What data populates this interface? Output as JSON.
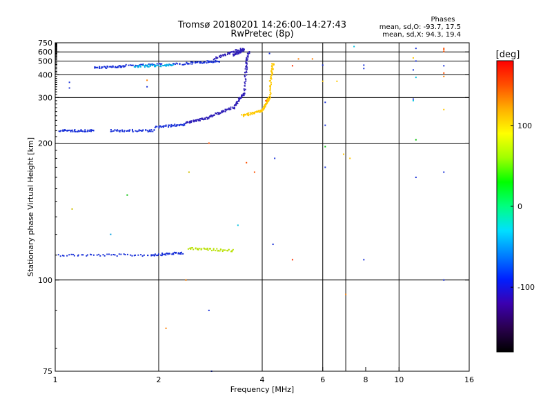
{
  "chart_data": {
    "type": "scatter",
    "title": "Tromsø 20180201 14:26:00–14:27:43",
    "subtitle": "RwPretec (8p)",
    "xlabel": "Frequency [MHz]",
    "ylabel": "Stationary phase Virtual Height [km]",
    "x_scale": "log",
    "y_scale": "reciprocal",
    "xlim": [
      1,
      16
    ],
    "ylim": [
      75,
      750
    ],
    "x_ticks": [
      1,
      2,
      4,
      6,
      8,
      10,
      16
    ],
    "y_ticks": [
      75,
      100,
      200,
      300,
      400,
      500,
      600,
      750
    ],
    "x_gridlines": [
      2,
      4,
      6,
      7,
      10
    ],
    "y_gridlines": [
      100,
      200,
      300,
      400,
      500,
      600
    ],
    "grid": true,
    "stats": {
      "heading": "Phases",
      "line_o": "mean, sd,O: -93.7, 17.5",
      "line_x": "mean, sd,X:  94.3, 19.4"
    },
    "colorbar": {
      "label": "[deg]",
      "range": [
        -180,
        180
      ],
      "ticks": [
        100,
        0,
        -100
      ],
      "colors": [
        "#000000",
        "#2a0050",
        "#3b00b0",
        "#0020ff",
        "#0080ff",
        "#00e0ff",
        "#00ff80",
        "#00ff00",
        "#a0ff00",
        "#ffff00",
        "#ffb000",
        "#ff5000",
        "#ff0000"
      ]
    },
    "series": [
      {
        "color": "#1830d8",
        "segments": [
          {
            "x": [
              1.02,
              1.9
            ],
            "y": [
              110,
              110
            ]
          },
          {
            "x": [
              1.9,
              2.35
            ],
            "y": [
              110,
              111
            ]
          },
          {
            "x": [
              1.03,
              1.3
            ],
            "y": [
              220,
              220
            ]
          },
          {
            "x": [
              1.45,
              1.95
            ],
            "y": [
              220,
              220
            ]
          },
          {
            "x": [
              1.95,
              2.4
            ],
            "y": [
              226,
              232
            ]
          },
          {
            "x": [
              1.6,
              2.4
            ],
            "y": [
              460,
              475
            ]
          },
          {
            "x": [
              2.4,
              3.0
            ],
            "y": [
              480,
              500
            ]
          },
          {
            "x": [
              1.3,
              1.6
            ],
            "y": [
              445,
              455
            ]
          }
        ]
      },
      {
        "color": "#3020b8",
        "segments": [
          {
            "x": [
              2.4,
              2.8
            ],
            "y": [
              235,
              245
            ]
          },
          {
            "x": [
              2.8,
              3.3
            ],
            "y": [
              247,
              270
            ]
          },
          {
            "x": [
              3.3,
              3.55
            ],
            "y": [
              270,
              315
            ]
          },
          {
            "x": [
              3.55,
              3.65
            ],
            "y": [
              315,
              600
            ]
          },
          {
            "x": [
              2.9,
              3.5
            ],
            "y": [
              520,
              640
            ]
          },
          {
            "x": [
              3.3,
              3.55
            ],
            "y": [
              560,
              630
            ]
          }
        ]
      },
      {
        "color": "#ffc800",
        "segments": [
          {
            "x": [
              3.5,
              4.0
            ],
            "y": [
              250,
              262
            ]
          },
          {
            "x": [
              4.0,
              4.2
            ],
            "y": [
              262,
              300
            ]
          },
          {
            "x": [
              4.2,
              4.3
            ],
            "y": [
              300,
              480
            ]
          }
        ]
      },
      {
        "color": "#b8e000",
        "segments": [
          {
            "x": [
              2.45,
              3.3
            ],
            "y": [
              113,
              112
            ]
          }
        ]
      },
      {
        "color": "#00b0e8",
        "segments": [
          {
            "x": [
              1.7,
              2.2
            ],
            "y": [
              455,
              465
            ]
          }
        ]
      }
    ],
    "scattered_points": [
      {
        "x": 1.1,
        "y": 360,
        "color": "#1830d8"
      },
      {
        "x": 1.1,
        "y": 335,
        "color": "#1830d8"
      },
      {
        "x": 1.12,
        "y": 135,
        "color": "#d0c000"
      },
      {
        "x": 1.45,
        "y": 120,
        "color": "#00a0e0"
      },
      {
        "x": 1.62,
        "y": 145,
        "color": "#00c000"
      },
      {
        "x": 1.85,
        "y": 340,
        "color": "#1830d8"
      },
      {
        "x": 1.85,
        "y": 370,
        "color": "#ff8000"
      },
      {
        "x": 2.1,
        "y": 85,
        "color": "#ff8000"
      },
      {
        "x": 2.4,
        "y": 100,
        "color": "#ff8000"
      },
      {
        "x": 2.45,
        "y": 165,
        "color": "#d0c000"
      },
      {
        "x": 2.8,
        "y": 90,
        "color": "#1830d8"
      },
      {
        "x": 2.8,
        "y": 200,
        "color": "#ff5000"
      },
      {
        "x": 2.85,
        "y": 75,
        "color": "#1830d8"
      },
      {
        "x": 3.4,
        "y": 125,
        "color": "#00c0e0"
      },
      {
        "x": 3.6,
        "y": 175,
        "color": "#ff5000"
      },
      {
        "x": 3.8,
        "y": 165,
        "color": "#ff5000"
      },
      {
        "x": 4.1,
        "y": 290,
        "color": "#ff3000"
      },
      {
        "x": 4.2,
        "y": 580,
        "color": "#1830d8"
      },
      {
        "x": 4.3,
        "y": 115,
        "color": "#1830d8"
      },
      {
        "x": 4.35,
        "y": 180,
        "color": "#1830d8"
      },
      {
        "x": 4.9,
        "y": 108,
        "color": "#ff3000"
      },
      {
        "x": 4.9,
        "y": 460,
        "color": "#ff3000"
      },
      {
        "x": 5.1,
        "y": 520,
        "color": "#ff8000"
      },
      {
        "x": 5.6,
        "y": 520,
        "color": "#ff8000"
      },
      {
        "x": 6.0,
        "y": 465,
        "color": "#1830d8"
      },
      {
        "x": 6.0,
        "y": 365,
        "color": "#ffc800"
      },
      {
        "x": 6.1,
        "y": 285,
        "color": "#1830d8"
      },
      {
        "x": 6.1,
        "y": 230,
        "color": "#1830d8"
      },
      {
        "x": 6.1,
        "y": 195,
        "color": "#00c000"
      },
      {
        "x": 6.1,
        "y": 170,
        "color": "#1830d8"
      },
      {
        "x": 6.6,
        "y": 365,
        "color": "#ffc800"
      },
      {
        "x": 6.9,
        "y": 185,
        "color": "#ffc800"
      },
      {
        "x": 7.0,
        "y": 95,
        "color": "#ff8000"
      },
      {
        "x": 7.2,
        "y": 180,
        "color": "#ffc800"
      },
      {
        "x": 7.4,
        "y": 680,
        "color": "#00c0e0"
      },
      {
        "x": 7.9,
        "y": 465,
        "color": "#1830d8"
      },
      {
        "x": 7.9,
        "y": 440,
        "color": "#1830d8"
      },
      {
        "x": 7.9,
        "y": 108,
        "color": "#1830d8"
      },
      {
        "x": 11.0,
        "y": 530,
        "color": "#ffc800"
      },
      {
        "x": 11.0,
        "y": 430,
        "color": "#1830d8"
      },
      {
        "x": 11.0,
        "y": 295,
        "color": "#1830d8"
      },
      {
        "x": 11.0,
        "y": 290,
        "color": "#00c0e0"
      },
      {
        "x": 11.2,
        "y": 650,
        "color": "#1830d8"
      },
      {
        "x": 11.2,
        "y": 500,
        "color": "#1830d8"
      },
      {
        "x": 11.2,
        "y": 385,
        "color": "#00c0e0"
      },
      {
        "x": 11.2,
        "y": 205,
        "color": "#00c000"
      },
      {
        "x": 11.2,
        "y": 160,
        "color": "#1830d8"
      },
      {
        "x": 13.5,
        "y": 650,
        "color": "#ff5000"
      },
      {
        "x": 13.5,
        "y": 630,
        "color": "#ff5000"
      },
      {
        "x": 13.5,
        "y": 605,
        "color": "#ff5000"
      },
      {
        "x": 13.5,
        "y": 460,
        "color": "#1830d8"
      },
      {
        "x": 13.5,
        "y": 410,
        "color": "#ff5000"
      },
      {
        "x": 13.5,
        "y": 390,
        "color": "#ff8000"
      },
      {
        "x": 13.5,
        "y": 265,
        "color": "#ffc800"
      },
      {
        "x": 13.5,
        "y": 165,
        "color": "#1830d8"
      },
      {
        "x": 13.5,
        "y": 100,
        "color": "#1830d8"
      }
    ]
  }
}
